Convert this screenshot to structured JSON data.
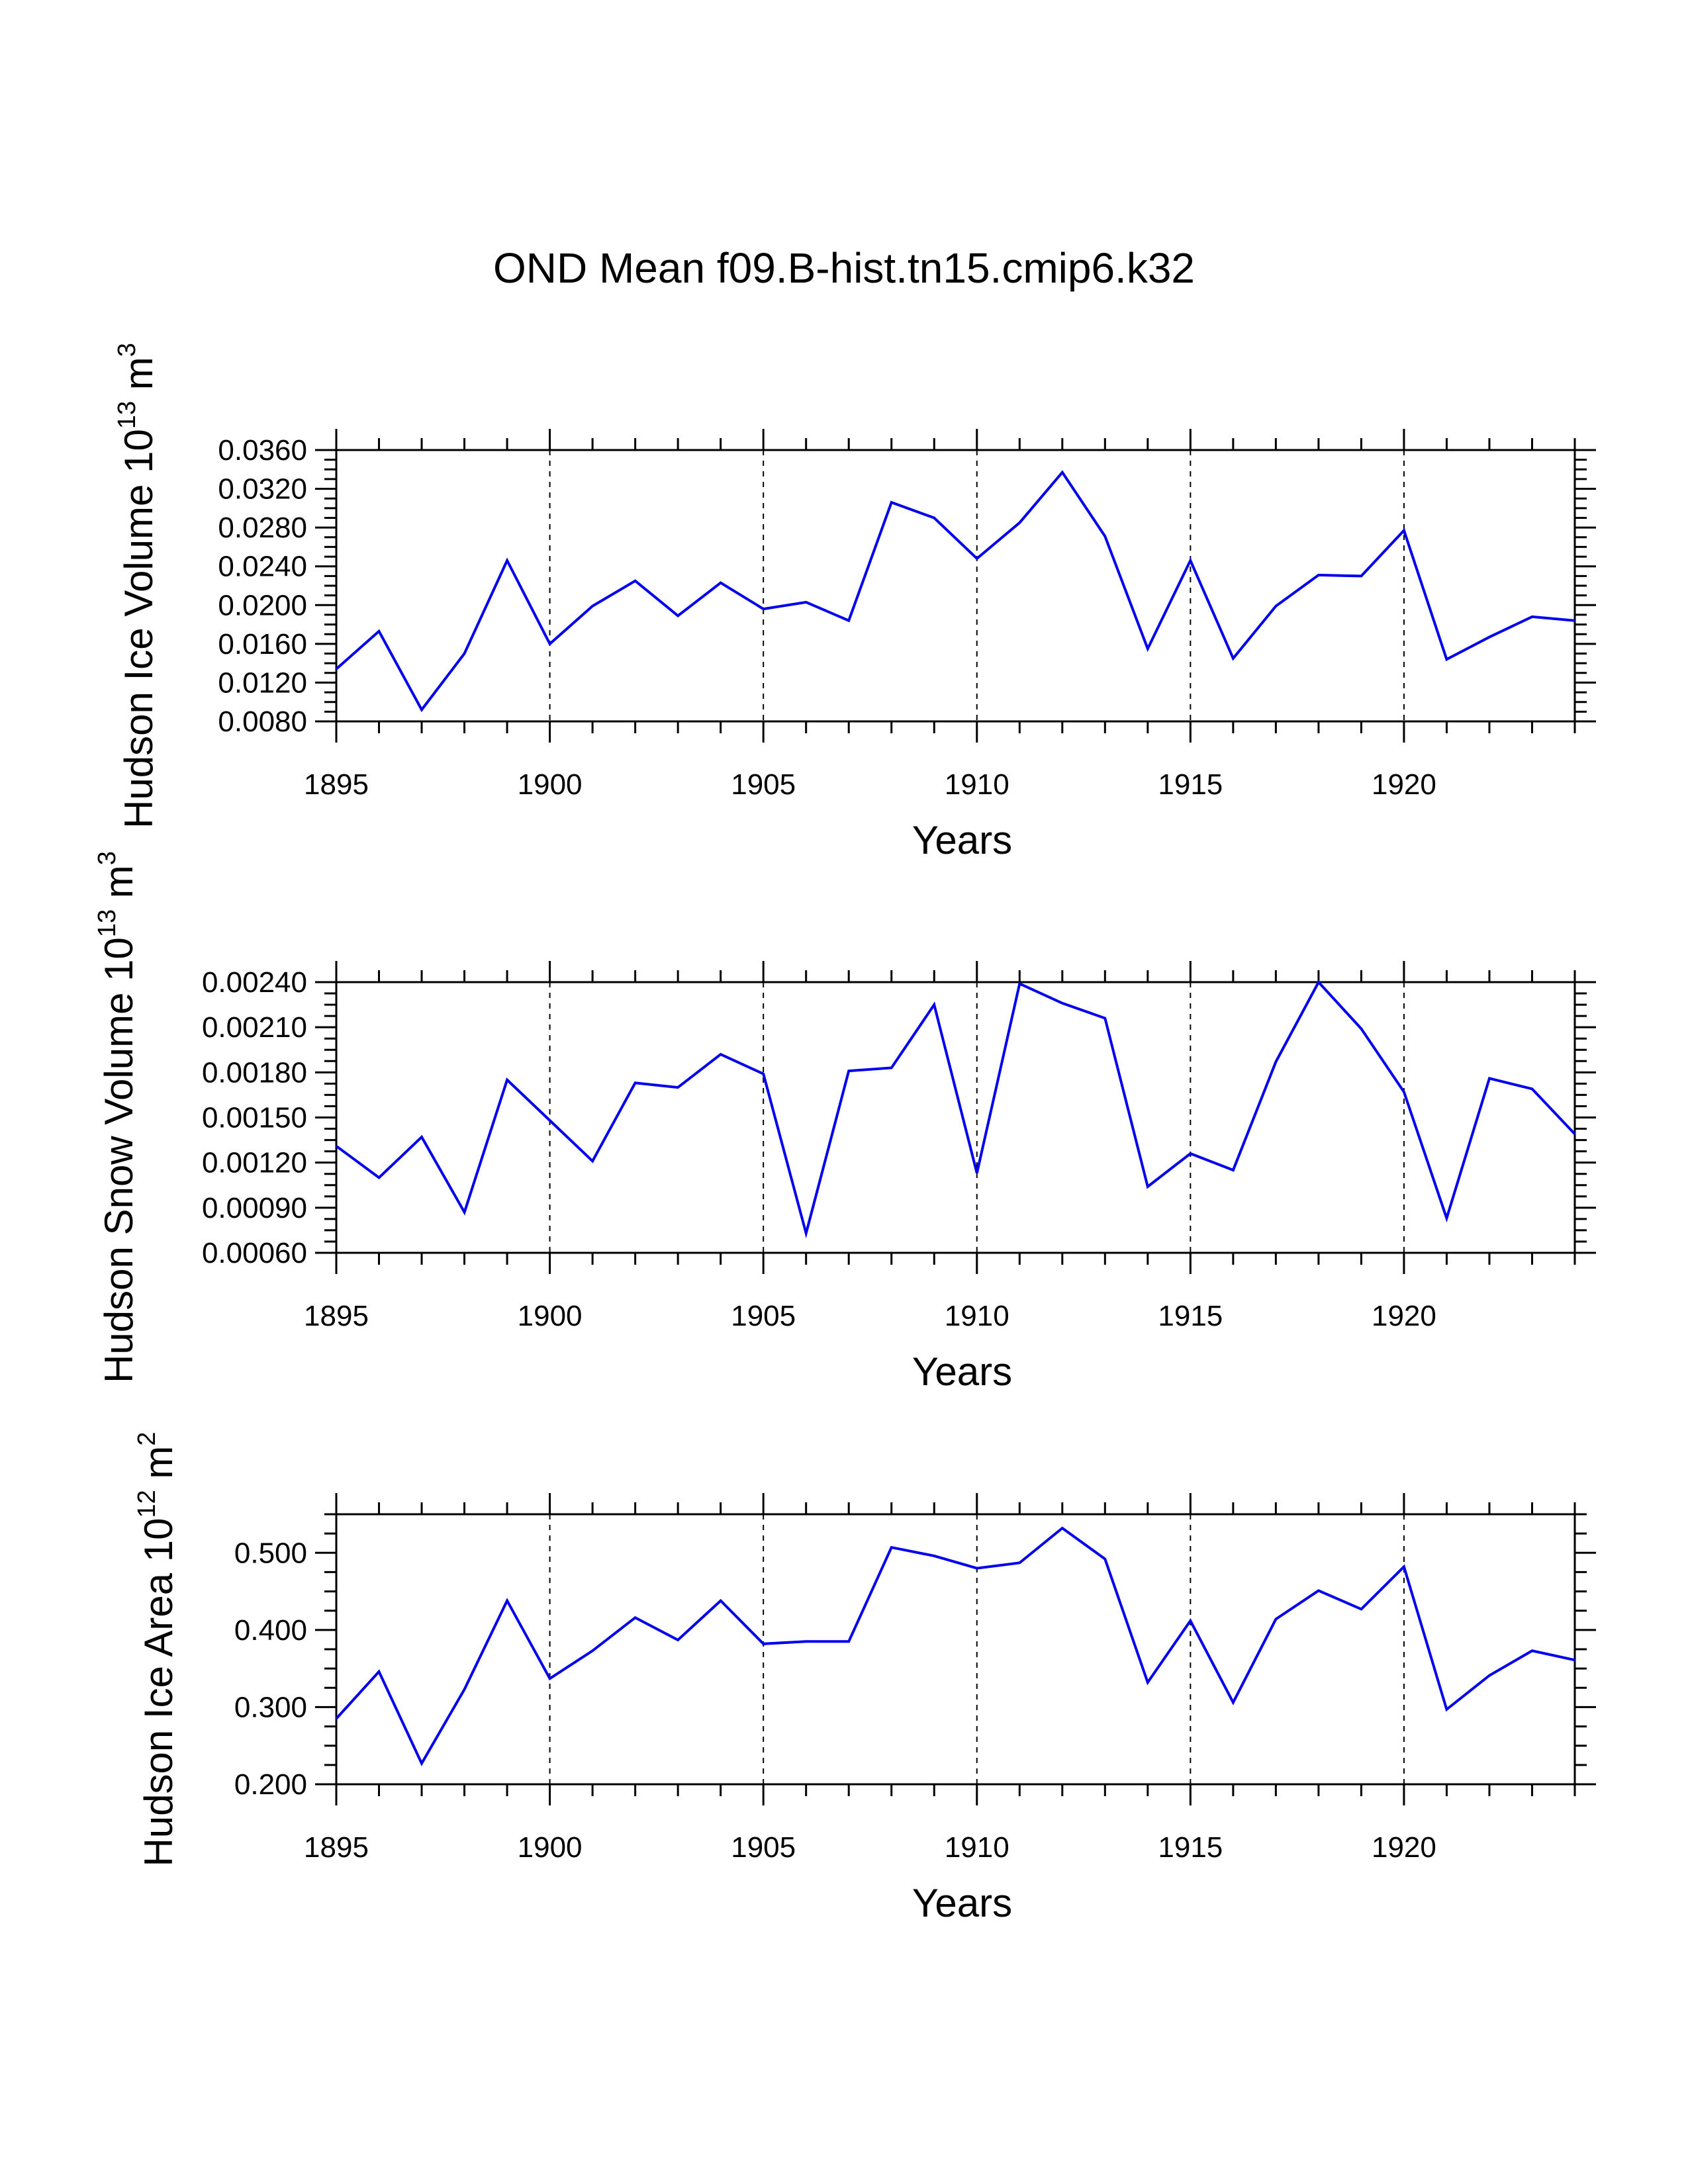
{
  "title": "OND Mean f09.B-hist.tn15.cmip6.k32",
  "chart_data": [
    {
      "type": "line",
      "xlabel": "Years",
      "ylabel": "Hudson Ice Volume 10",
      "ylabel_exp": "13",
      "ylabel_unit": "m",
      "ylabel_unit_exp": "3",
      "xlim": [
        1895,
        1924
      ],
      "ylim": [
        0.008,
        0.036
      ],
      "yticks": [
        0.008,
        0.012,
        0.016,
        0.02,
        0.024,
        0.028,
        0.032,
        0.036
      ],
      "ytick_labels": [
        "0.0080",
        "0.0120",
        "0.0160",
        "0.0200",
        "0.0240",
        "0.0280",
        "0.0320",
        "0.0360"
      ],
      "xticks": [
        1895,
        1900,
        1905,
        1910,
        1915,
        1920
      ],
      "xtick_labels": [
        "1895",
        "1900",
        "1905",
        "1910",
        "1915",
        "1920"
      ],
      "gridlines_x": [
        1900,
        1905,
        1910,
        1915,
        1920
      ],
      "line_color": "#0000ee",
      "x": [
        1895,
        1896,
        1897,
        1898,
        1899,
        1900,
        1901,
        1902,
        1903,
        1904,
        1905,
        1906,
        1907,
        1908,
        1909,
        1910,
        1911,
        1912,
        1913,
        1914,
        1915,
        1916,
        1917,
        1918,
        1919,
        1920,
        1921,
        1922,
        1923,
        1924
      ],
      "values": [
        0.0134,
        0.0173,
        0.0092,
        0.015,
        0.0246,
        0.016,
        0.0199,
        0.0225,
        0.0189,
        0.0223,
        0.0196,
        0.0203,
        0.0184,
        0.0306,
        0.029,
        0.0248,
        0.0285,
        0.0337,
        0.0271,
        0.0155,
        0.0246,
        0.0145,
        0.0199,
        0.0231,
        0.023,
        0.0277,
        0.0144,
        0.0167,
        0.0188,
        0.0184
      ]
    },
    {
      "type": "line",
      "xlabel": "Years",
      "ylabel": "Hudson Snow Volume 10",
      "ylabel_exp": "13",
      "ylabel_unit": "m",
      "ylabel_unit_exp": "3",
      "xlim": [
        1895,
        1924
      ],
      "ylim": [
        0.0006,
        0.0024
      ],
      "yticks": [
        0.0006,
        0.0009,
        0.0012,
        0.0015,
        0.0018,
        0.0021,
        0.0024
      ],
      "ytick_labels": [
        "0.00060",
        "0.00090",
        "0.00120",
        "0.00150",
        "0.00180",
        "0.00210",
        "0.00240"
      ],
      "xticks": [
        1895,
        1900,
        1905,
        1910,
        1915,
        1920
      ],
      "xtick_labels": [
        "1895",
        "1900",
        "1905",
        "1910",
        "1915",
        "1920"
      ],
      "gridlines_x": [
        1900,
        1905,
        1910,
        1915,
        1920
      ],
      "line_color": "#0000ee",
      "x": [
        1895,
        1896,
        1897,
        1898,
        1899,
        1900,
        1901,
        1902,
        1903,
        1904,
        1905,
        1906,
        1907,
        1908,
        1909,
        1910,
        1911,
        1912,
        1913,
        1914,
        1915,
        1916,
        1917,
        1918,
        1919,
        1920,
        1921,
        1922,
        1923,
        1924
      ],
      "values": [
        0.00131,
        0.0011,
        0.00137,
        0.00087,
        0.00175,
        0.00148,
        0.00121,
        0.00173,
        0.0017,
        0.00192,
        0.00179,
        0.00073,
        0.00181,
        0.00183,
        0.00225,
        0.00113,
        0.00239,
        0.00226,
        0.00216,
        0.00104,
        0.00126,
        0.00115,
        0.00187,
        0.0024,
        0.00209,
        0.00167,
        0.00083,
        0.00176,
        0.00169,
        0.00139
      ]
    },
    {
      "type": "line",
      "xlabel": "Years",
      "ylabel": "Hudson Ice Area 10",
      "ylabel_exp": "12",
      "ylabel_unit": "m",
      "ylabel_unit_exp": "2",
      "xlim": [
        1895,
        1924
      ],
      "ylim": [
        0.2,
        0.55
      ],
      "yticks": [
        0.2,
        0.3,
        0.4,
        0.5
      ],
      "ytick_labels": [
        "0.200",
        "0.300",
        "0.400",
        "0.500"
      ],
      "xticks": [
        1895,
        1900,
        1905,
        1910,
        1915,
        1920
      ],
      "xtick_labels": [
        "1895",
        "1900",
        "1905",
        "1910",
        "1915",
        "1920"
      ],
      "gridlines_x": [
        1900,
        1905,
        1910,
        1915,
        1920
      ],
      "line_color": "#0000ee",
      "x": [
        1895,
        1896,
        1897,
        1898,
        1899,
        1900,
        1901,
        1902,
        1903,
        1904,
        1905,
        1906,
        1907,
        1908,
        1909,
        1910,
        1911,
        1912,
        1913,
        1914,
        1915,
        1916,
        1917,
        1918,
        1919,
        1920,
        1921,
        1922,
        1923,
        1924
      ],
      "values": [
        0.285,
        0.346,
        0.227,
        0.323,
        0.438,
        0.337,
        0.373,
        0.416,
        0.387,
        0.438,
        0.382,
        0.385,
        0.385,
        0.507,
        0.496,
        0.48,
        0.487,
        0.532,
        0.492,
        0.332,
        0.412,
        0.306,
        0.414,
        0.451,
        0.427,
        0.482,
        0.297,
        0.341,
        0.373,
        0.361
      ]
    }
  ]
}
